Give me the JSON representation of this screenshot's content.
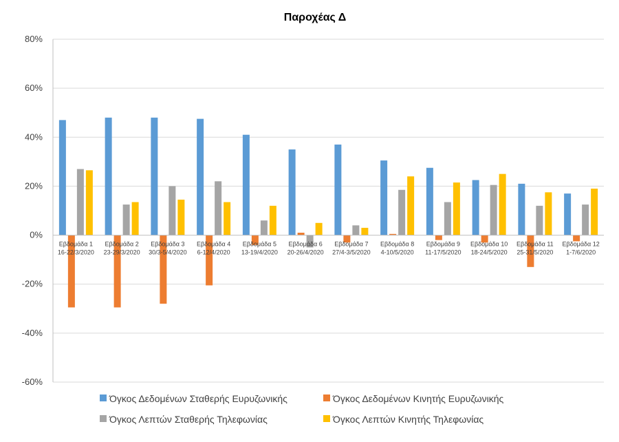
{
  "chart_data": {
    "type": "bar",
    "title": "Παροχέας Δ",
    "xlabel": "",
    "ylabel": "",
    "ylim": [
      -60,
      80
    ],
    "yticks": [
      80,
      60,
      40,
      20,
      0,
      -20,
      -40,
      -60
    ],
    "ytick_labels": [
      "80%",
      "60%",
      "40%",
      "20%",
      "0%",
      "-20%",
      "-40%",
      "-60%"
    ],
    "grid": true,
    "legend_position": "bottom",
    "categories": [
      [
        "Εβδομάδα 1",
        "16-22/3/2020"
      ],
      [
        "Εβδομάδα 2",
        "23-29/3/2020"
      ],
      [
        "Εβδομάδα 3",
        "30/3-5/4/2020"
      ],
      [
        "Εβδομάδα 4",
        "6-12/4/2020"
      ],
      [
        "Εβδομάδα 5",
        "13-19/4/2020"
      ],
      [
        "Εβδομάδα 6",
        "20-26/4/2020"
      ],
      [
        "Εβδομάδα 7",
        "27/4-3/5/2020"
      ],
      [
        "Εβδομάδα 8",
        "4-10/5/2020"
      ],
      [
        "Εβδομάδα 9",
        "11-17/5/2020"
      ],
      [
        "Εβδομάδα 10",
        "18-24/5/2020"
      ],
      [
        "Εβδομάδα 11",
        "25-31/5/2020"
      ],
      [
        "Εβδομάδα 12",
        "1-7/6/2020"
      ]
    ],
    "series": [
      {
        "name": "Όγκος Δεδομένων Σταθερής Ευρυζωνικής",
        "color": "#5B9BD5",
        "values": [
          47,
          48,
          48,
          47.5,
          41,
          35,
          37,
          30.5,
          27.5,
          22.5,
          21,
          17
        ]
      },
      {
        "name": "Όγκος Δεδομένων Κινητής Ευρυζωνικής",
        "color": "#ED7D31",
        "values": [
          -29.5,
          -29.5,
          -28,
          -20.5,
          -4,
          1,
          -3,
          0.5,
          -2,
          -3,
          -13,
          -2.5
        ]
      },
      {
        "name": "Όγκος Λεπτών Σταθερής Τηλεφωνίας",
        "color": "#A5A5A5",
        "values": [
          27,
          12.5,
          20,
          22,
          6,
          -5,
          4,
          18.5,
          13.5,
          20.5,
          12,
          12.5
        ]
      },
      {
        "name": "Όγκος Λεπτών Κινητής Τηλεφωνίας",
        "color": "#FFC000",
        "values": [
          26.5,
          13.5,
          14.5,
          13.5,
          12,
          5,
          3,
          24,
          21.5,
          25,
          17.5,
          19
        ]
      }
    ]
  }
}
